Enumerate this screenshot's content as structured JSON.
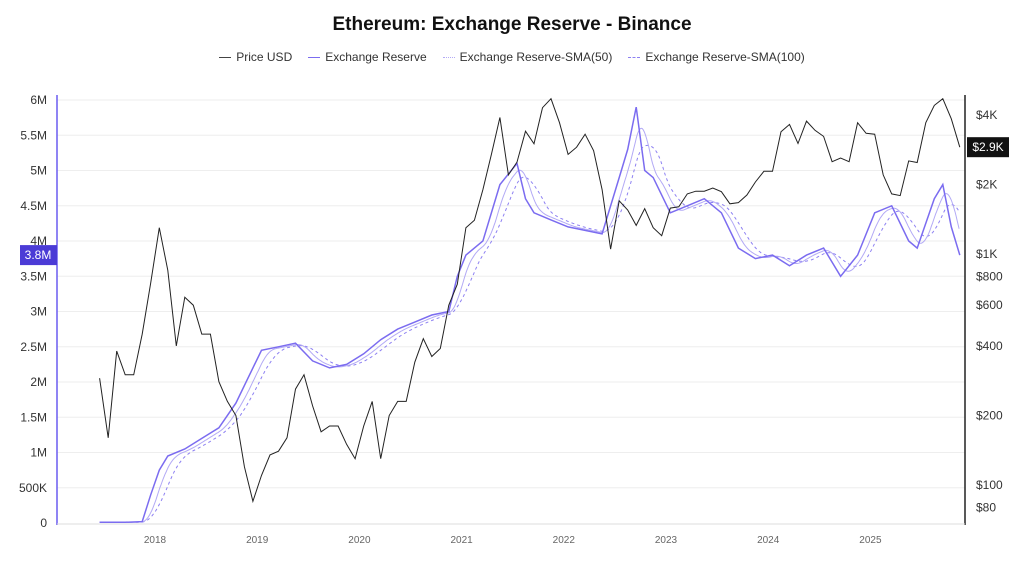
{
  "chart_data": {
    "type": "line",
    "title": "Ethereum: Exchange Reserve - Binance",
    "legend_position": "top",
    "grid": true,
    "x_ticks": [
      "2018",
      "2019",
      "2020",
      "2021",
      "2022",
      "2023",
      "2024",
      "2025"
    ],
    "y_left": {
      "ticks": [
        "0",
        "500K",
        "1M",
        "1.5M",
        "2M",
        "2.5M",
        "3M",
        "3.5M",
        "4M",
        "4.5M",
        "5M",
        "5.5M",
        "6M"
      ],
      "range": [
        0,
        6000000
      ],
      "highlight_label": "3.8M"
    },
    "y_right": {
      "scale": "log",
      "ticks": [
        "$80",
        "$100",
        "$200",
        "$400",
        "$600",
        "$800",
        "$1K",
        "$2K",
        "$4K"
      ],
      "tick_values": [
        80,
        100,
        200,
        400,
        600,
        800,
        1000,
        2000,
        4000
      ],
      "range": [
        67,
        5000
      ],
      "highlight_label": "$2.9K"
    },
    "colors": {
      "price": "#222222",
      "reserve": "#7b6cf0",
      "sma50": "#b3aaf5",
      "sma100": "#8d80f2",
      "left_axis": "#6a5cf0",
      "left_highlight": "#4b3bd6",
      "right_highlight": "#111111"
    },
    "series": [
      {
        "name": "Price USD",
        "axis": "right",
        "dates": [
          "2017-06",
          "2017-07",
          "2017-08",
          "2017-09",
          "2017-10",
          "2017-11",
          "2017-12",
          "2018-01",
          "2018-02",
          "2018-03",
          "2018-04",
          "2018-05",
          "2018-06",
          "2018-07",
          "2018-08",
          "2018-09",
          "2018-10",
          "2018-11",
          "2018-12",
          "2019-01",
          "2019-02",
          "2019-03",
          "2019-04",
          "2019-05",
          "2019-06",
          "2019-07",
          "2019-08",
          "2019-09",
          "2019-10",
          "2019-11",
          "2019-12",
          "2020-01",
          "2020-02",
          "2020-03",
          "2020-04",
          "2020-05",
          "2020-06",
          "2020-07",
          "2020-08",
          "2020-09",
          "2020-10",
          "2020-11",
          "2020-12",
          "2021-01",
          "2021-02",
          "2021-03",
          "2021-04",
          "2021-05",
          "2021-06",
          "2021-07",
          "2021-08",
          "2021-09",
          "2021-10",
          "2021-11",
          "2021-12",
          "2022-01",
          "2022-02",
          "2022-03",
          "2022-04",
          "2022-05",
          "2022-06",
          "2022-07",
          "2022-08",
          "2022-09",
          "2022-10",
          "2022-11",
          "2022-12",
          "2023-01",
          "2023-02",
          "2023-03",
          "2023-04",
          "2023-05",
          "2023-06",
          "2023-07",
          "2023-08",
          "2023-09",
          "2023-10",
          "2023-11",
          "2023-12",
          "2024-01",
          "2024-02",
          "2024-03",
          "2024-04",
          "2024-05",
          "2024-06",
          "2024-07",
          "2024-08",
          "2024-09",
          "2024-10",
          "2024-11",
          "2024-12",
          "2025-01",
          "2025-02",
          "2025-03",
          "2025-04",
          "2025-05",
          "2025-06",
          "2025-07",
          "2025-08",
          "2025-09",
          "2025-10",
          "2025-11"
        ],
        "values": [
          290,
          160,
          380,
          300,
          300,
          450,
          750,
          1300,
          850,
          400,
          650,
          600,
          450,
          450,
          280,
          230,
          200,
          120,
          85,
          110,
          135,
          140,
          160,
          260,
          300,
          220,
          170,
          180,
          180,
          150,
          130,
          180,
          230,
          130,
          200,
          230,
          230,
          340,
          430,
          360,
          390,
          600,
          740,
          1300,
          1400,
          1900,
          2700,
          3900,
          2200,
          2500,
          3400,
          3000,
          4300,
          4700,
          3700,
          2700,
          2900,
          3300,
          2800,
          1900,
          1050,
          1700,
          1550,
          1330,
          1570,
          1300,
          1200,
          1580,
          1600,
          1820,
          1870,
          1870,
          1930,
          1860,
          1650,
          1670,
          1800,
          2050,
          2280,
          2280,
          3380,
          3640,
          3010,
          3760,
          3430,
          3230,
          2510,
          2600,
          2510,
          3700,
          3330,
          3300,
          2200,
          1820,
          1790,
          2530,
          2490,
          3700,
          4400,
          4700,
          3850,
          2900
        ]
      },
      {
        "name": "Exchange Reserve",
        "axis": "left",
        "dates": [
          "2017-06",
          "2017-09",
          "2017-11",
          "2017-12",
          "2018-01",
          "2018-02",
          "2018-04",
          "2018-06",
          "2018-08",
          "2018-10",
          "2018-12",
          "2019-01",
          "2019-03",
          "2019-05",
          "2019-07",
          "2019-09",
          "2019-11",
          "2020-01",
          "2020-03",
          "2020-05",
          "2020-07",
          "2020-09",
          "2020-11",
          "2020-12",
          "2021-01",
          "2021-03",
          "2021-05",
          "2021-07",
          "2021-08",
          "2021-09",
          "2021-11",
          "2022-01",
          "2022-03",
          "2022-05",
          "2022-07",
          "2022-08",
          "2022-09",
          "2022-10",
          "2022-11",
          "2023-01",
          "2023-03",
          "2023-05",
          "2023-07",
          "2023-09",
          "2023-11",
          "2024-01",
          "2024-03",
          "2024-05",
          "2024-07",
          "2024-09",
          "2024-11",
          "2025-01",
          "2025-03",
          "2025-05",
          "2025-06",
          "2025-08",
          "2025-09",
          "2025-10",
          "2025-11"
        ],
        "values": [
          10000,
          10000,
          20000,
          400000,
          750000,
          950000,
          1050000,
          1200000,
          1350000,
          1700000,
          2200000,
          2450000,
          2500000,
          2550000,
          2300000,
          2200000,
          2250000,
          2400000,
          2600000,
          2750000,
          2850000,
          2950000,
          3000000,
          3500000,
          3800000,
          4000000,
          4800000,
          5100000,
          4600000,
          4400000,
          4300000,
          4200000,
          4150000,
          4100000,
          4900000,
          5300000,
          5900000,
          5000000,
          4900000,
          4400000,
          4500000,
          4600000,
          4400000,
          3900000,
          3750000,
          3800000,
          3650000,
          3800000,
          3900000,
          3500000,
          3800000,
          4400000,
          4500000,
          4000000,
          3900000,
          4600000,
          4800000,
          4200000,
          3800000
        ]
      },
      {
        "name": "Exchange Reserve-SMA(50)",
        "axis": "left",
        "window_days": 50
      },
      {
        "name": "Exchange Reserve-SMA(100)",
        "axis": "left",
        "window_days": 100
      }
    ]
  }
}
